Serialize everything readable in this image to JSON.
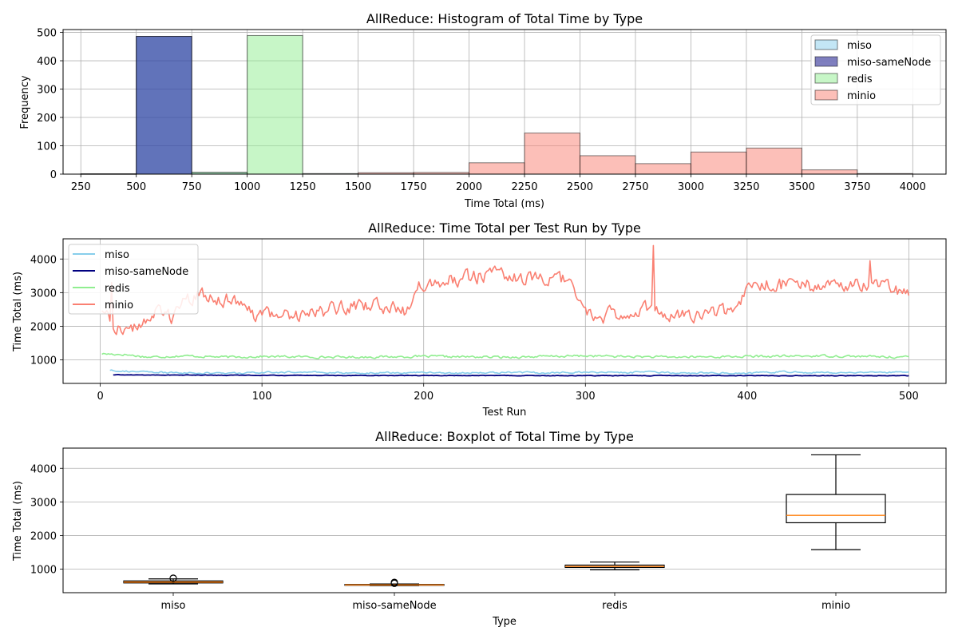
{
  "colors": {
    "miso": "#87ceeb",
    "miso-sameNode": "#000080",
    "redis": "#90ee90",
    "minio": "#fa8072",
    "grid": "#b0b0b0",
    "median": "#ff7f0e"
  },
  "chart_data": [
    {
      "type": "bar",
      "subtype": "histogram",
      "title": "AllReduce: Histogram of Total Time by Type",
      "xlabel": "Time Total (ms)",
      "ylabel": "Frequency",
      "xlim": [
        170,
        4150
      ],
      "ylim": [
        0,
        510
      ],
      "xticks": [
        250,
        500,
        750,
        1000,
        1250,
        1500,
        1750,
        2000,
        2250,
        2500,
        2750,
        3000,
        3250,
        3500,
        3750,
        4000
      ],
      "yticks": [
        0,
        100,
        200,
        300,
        400,
        500
      ],
      "grid": true,
      "legend": "top-right",
      "series": [
        {
          "name": "miso",
          "bins": [
            {
              "x0": 250,
              "x1": 500,
              "count": 1
            },
            {
              "x0": 500,
              "x1": 750,
              "count": 486
            },
            {
              "x0": 750,
              "x1": 1000,
              "count": 6
            }
          ]
        },
        {
          "name": "miso-sameNode",
          "bins": [
            {
              "x0": 250,
              "x1": 500,
              "count": 1
            },
            {
              "x0": 500,
              "x1": 750,
              "count": 486
            }
          ]
        },
        {
          "name": "redis",
          "bins": [
            {
              "x0": 750,
              "x1": 1000,
              "count": 6
            },
            {
              "x0": 1000,
              "x1": 1250,
              "count": 489
            },
            {
              "x0": 1250,
              "x1": 1500,
              "count": 2
            }
          ]
        },
        {
          "name": "minio",
          "bins": [
            {
              "x0": 1500,
              "x1": 1750,
              "count": 5
            },
            {
              "x0": 1750,
              "x1": 2000,
              "count": 6
            },
            {
              "x0": 2000,
              "x1": 2250,
              "count": 40
            },
            {
              "x0": 2250,
              "x1": 2500,
              "count": 145
            },
            {
              "x0": 2500,
              "x1": 2750,
              "count": 65
            },
            {
              "x0": 2750,
              "x1": 3000,
              "count": 37
            },
            {
              "x0": 3000,
              "x1": 3250,
              "count": 78
            },
            {
              "x0": 3250,
              "x1": 3500,
              "count": 92
            },
            {
              "x0": 3500,
              "x1": 3750,
              "count": 15
            },
            {
              "x0": 3750,
              "x1": 4000,
              "count": 2
            }
          ]
        }
      ]
    },
    {
      "type": "line",
      "title": "AllReduce: Time Total per Test Run by Type",
      "xlabel": "Test Run",
      "ylabel": "Time Total (ms)",
      "xlim": [
        -23,
        523
      ],
      "ylim": [
        300,
        4600
      ],
      "xticks": [
        0,
        100,
        200,
        300,
        400,
        500
      ],
      "yticks": [
        1000,
        2000,
        3000,
        4000
      ],
      "grid": true,
      "legend": "top-left",
      "series": [
        {
          "name": "miso",
          "x_range": [
            6,
            500
          ],
          "points": [
            [
              6,
              700
            ],
            [
              20,
              650
            ],
            [
              40,
              620
            ],
            [
              60,
              610
            ],
            [
              80,
              600
            ],
            [
              100,
              620
            ],
            [
              120,
              640
            ],
            [
              140,
              620
            ],
            [
              160,
              610
            ],
            [
              180,
              620
            ],
            [
              200,
              630
            ],
            [
              220,
              610
            ],
            [
              240,
              620
            ],
            [
              260,
              630
            ],
            [
              280,
              610
            ],
            [
              300,
              640
            ],
            [
              320,
              620
            ],
            [
              340,
              630
            ],
            [
              360,
              610
            ],
            [
              380,
              620
            ],
            [
              400,
              600
            ],
            [
              420,
              640
            ],
            [
              440,
              620
            ],
            [
              460,
              630
            ],
            [
              480,
              610
            ],
            [
              500,
              660
            ]
          ],
          "jitter": 45
        },
        {
          "name": "miso-sameNode",
          "x_range": [
            8,
            500
          ],
          "points": [
            [
              8,
              555
            ],
            [
              100,
              540
            ],
            [
              200,
              535
            ],
            [
              300,
              530
            ],
            [
              400,
              530
            ],
            [
              500,
              530
            ]
          ],
          "jitter": 15
        },
        {
          "name": "redis",
          "x_range": [
            1,
            500
          ],
          "points": [
            [
              1,
              1180
            ],
            [
              15,
              1160
            ],
            [
              30,
              1080
            ],
            [
              50,
              1120
            ],
            [
              80,
              1080
            ],
            [
              100,
              1100
            ],
            [
              150,
              1080
            ],
            [
              200,
              1100
            ],
            [
              250,
              1080
            ],
            [
              300,
              1120
            ],
            [
              350,
              1080
            ],
            [
              400,
              1100
            ],
            [
              450,
              1120
            ],
            [
              500,
              1080
            ]
          ],
          "jitter": 60
        },
        {
          "name": "minio",
          "x_range": [
            1,
            500
          ],
          "points": [
            [
              1,
              2500
            ],
            [
              10,
              2000
            ],
            [
              20,
              1900
            ],
            [
              30,
              2300
            ],
            [
              40,
              2400
            ],
            [
              45,
              2300
            ],
            [
              55,
              2800
            ],
            [
              65,
              2900
            ],
            [
              80,
              2800
            ],
            [
              90,
              2400
            ],
            [
              100,
              2300
            ],
            [
              120,
              2350
            ],
            [
              140,
              2450
            ],
            [
              150,
              2600
            ],
            [
              170,
              2600
            ],
            [
              190,
              2450
            ],
            [
              195,
              3300
            ],
            [
              210,
              3350
            ],
            [
              230,
              3450
            ],
            [
              250,
              3550
            ],
            [
              270,
              3350
            ],
            [
              290,
              3350
            ],
            [
              300,
              2500
            ],
            [
              310,
              2300
            ],
            [
              320,
              2400
            ],
            [
              340,
              2500
            ],
            [
              360,
              2300
            ],
            [
              380,
              2450
            ],
            [
              395,
              2500
            ],
            [
              400,
              3100
            ],
            [
              420,
              3300
            ],
            [
              440,
              3200
            ],
            [
              460,
              3250
            ],
            [
              480,
              3200
            ],
            [
              500,
              3000
            ]
          ],
          "jitter": 380,
          "spikes": [
            [
              342,
              4400
            ],
            [
              7,
              3300
            ],
            [
              420,
              3400
            ],
            [
              476,
              3950
            ]
          ]
        }
      ]
    },
    {
      "type": "boxplot",
      "title": "AllReduce: Boxplot of Total Time by Type",
      "xlabel": "Type",
      "ylabel": "Time Total (ms)",
      "ylim": [
        300,
        4600
      ],
      "yticks": [
        1000,
        2000,
        3000,
        4000
      ],
      "categories": [
        "miso",
        "miso-sameNode",
        "redis",
        "minio"
      ],
      "grid": true,
      "boxes": [
        {
          "name": "miso",
          "whisker_low": 560,
          "q1": 590,
          "median": 615,
          "q3": 650,
          "whisker_high": 710,
          "outliers": [
            725,
            735
          ]
        },
        {
          "name": "miso-sameNode",
          "whisker_low": 510,
          "q1": 520,
          "median": 530,
          "q3": 545,
          "whisker_high": 560,
          "outliers": [
            575,
            590,
            610
          ]
        },
        {
          "name": "redis",
          "whisker_low": 980,
          "q1": 1050,
          "median": 1080,
          "q3": 1120,
          "whisker_high": 1210,
          "outliers": []
        },
        {
          "name": "minio",
          "whisker_low": 1580,
          "q1": 2380,
          "median": 2600,
          "q3": 3220,
          "whisker_high": 4400,
          "outliers": []
        }
      ]
    }
  ]
}
